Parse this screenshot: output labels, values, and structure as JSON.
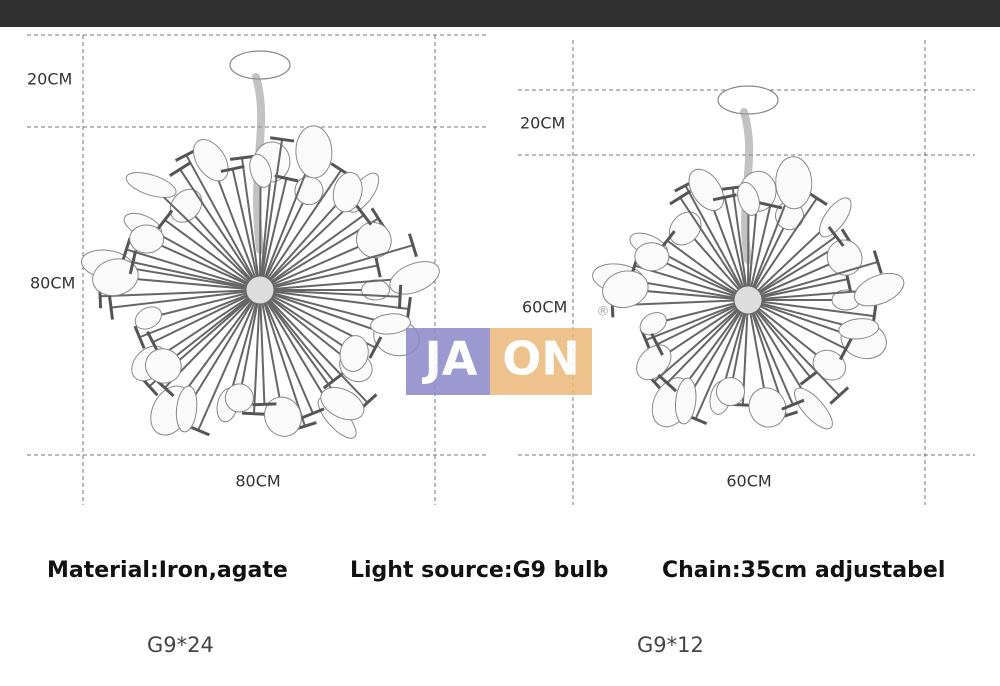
{
  "diagrams": [
    {
      "top_label": "20CM",
      "height_label": "80CM",
      "width_label": "80CM",
      "caption": "G9*24"
    },
    {
      "top_label": "20CM",
      "height_label": "60CM",
      "width_label": "60CM",
      "caption": "G9*12"
    }
  ],
  "watermark": {
    "left": "JA",
    "right": "ON",
    "mark": "®"
  },
  "specs": [
    "Material:Iron,agate",
    "Light source:G9 bulb",
    "Chain:35cm adjustabel"
  ]
}
